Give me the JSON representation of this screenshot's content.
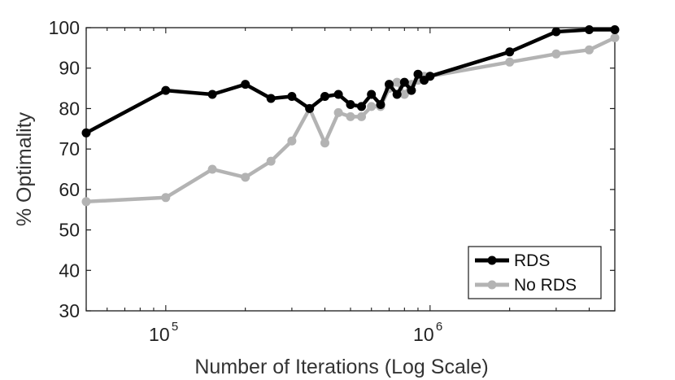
{
  "chart_data": {
    "type": "line",
    "title": "",
    "xlabel": "Number of Iterations (Log Scale)",
    "ylabel": "% Optimality",
    "xscale": "log",
    "xlim": [
      50000,
      5000000
    ],
    "ylim": [
      30,
      100
    ],
    "grid": false,
    "legend_position": "bottom-right",
    "x_ticks": [
      {
        "base": "10",
        "exp": "5",
        "value": 100000
      },
      {
        "base": "10",
        "exp": "6",
        "value": 1000000
      }
    ],
    "y_ticks": [
      30,
      40,
      50,
      60,
      70,
      80,
      90,
      100
    ],
    "series": [
      {
        "name": "No RDS",
        "color": "#b3b3b3",
        "x": [
          50000,
          100000,
          150000,
          200000,
          250000,
          300000,
          350000,
          400000,
          450000,
          500000,
          550000,
          600000,
          650000,
          700000,
          750000,
          800000,
          850000,
          900000,
          950000,
          1000000,
          2000000,
          3000000,
          4000000,
          5000000
        ],
        "y": [
          57,
          58,
          65,
          63,
          67,
          72,
          80,
          71.5,
          79,
          78,
          78,
          80.5,
          80.5,
          85,
          86.5,
          83.5,
          86,
          87,
          88,
          88,
          91.5,
          93.5,
          94.5,
          97.5
        ]
      },
      {
        "name": "RDS",
        "color": "#000000",
        "x": [
          50000,
          100000,
          150000,
          200000,
          250000,
          300000,
          350000,
          400000,
          450000,
          500000,
          550000,
          600000,
          650000,
          700000,
          750000,
          800000,
          850000,
          900000,
          950000,
          1000000,
          2000000,
          3000000,
          4000000,
          5000000
        ],
        "y": [
          74,
          84.5,
          83.5,
          86,
          82.5,
          83,
          80,
          83,
          83.5,
          81,
          80.5,
          83.5,
          81,
          86,
          83.5,
          86.5,
          84.5,
          88.5,
          87,
          88,
          94,
          99,
          99.5,
          99.5
        ]
      }
    ]
  }
}
